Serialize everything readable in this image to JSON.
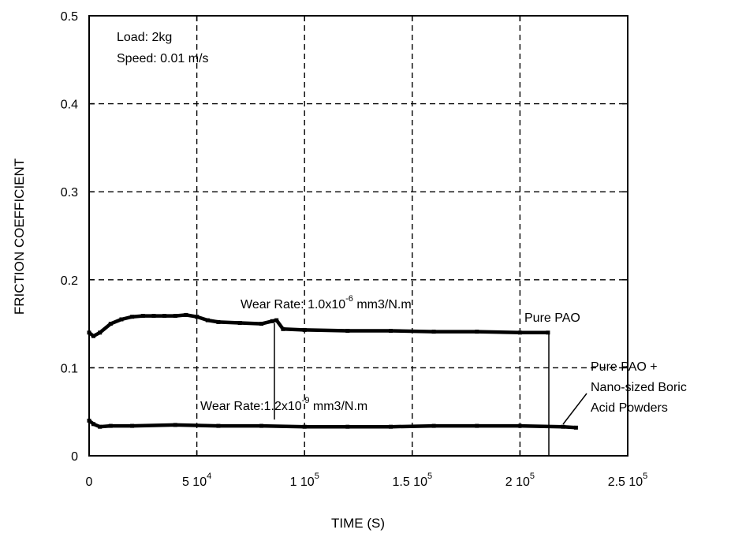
{
  "chart_data": {
    "type": "line",
    "xlabel": "TIME (S)",
    "ylabel": "FRICTION COEFFICIENT",
    "xlim": [
      0,
      250000
    ],
    "ylim": [
      0,
      0.5
    ],
    "grid": true,
    "x_ticks": [
      {
        "value": 0,
        "mantissa": "0",
        "exponent": ""
      },
      {
        "value": 50000,
        "mantissa": "5 10",
        "exponent": "4"
      },
      {
        "value": 100000,
        "mantissa": "1 10",
        "exponent": "5"
      },
      {
        "value": 150000,
        "mantissa": "1.5 10",
        "exponent": "5"
      },
      {
        "value": 200000,
        "mantissa": "2 10",
        "exponent": "5"
      },
      {
        "value": 250000,
        "mantissa": "2.5 10",
        "exponent": "5"
      }
    ],
    "y_ticks": [
      {
        "value": 0,
        "label": "0"
      },
      {
        "value": 0.1,
        "label": "0.1"
      },
      {
        "value": 0.2,
        "label": "0.2"
      },
      {
        "value": 0.3,
        "label": "0.3"
      },
      {
        "value": 0.4,
        "label": "0.4"
      },
      {
        "value": 0.5,
        "label": "0.5"
      }
    ],
    "conditions": [
      "Load: 2kg",
      "Speed: 0.01 m/s"
    ],
    "series": [
      {
        "name": "Pure PAO",
        "x": [
          0,
          2000,
          5000,
          10000,
          15000,
          20000,
          25000,
          30000,
          35000,
          40000,
          45000,
          50000,
          55000,
          60000,
          70000,
          80000,
          85000,
          87000,
          90000,
          100000,
          120000,
          140000,
          160000,
          180000,
          200000,
          213000
        ],
        "y": [
          0.14,
          0.136,
          0.14,
          0.15,
          0.155,
          0.158,
          0.159,
          0.159,
          0.159,
          0.159,
          0.16,
          0.158,
          0.154,
          0.152,
          0.151,
          0.15,
          0.153,
          0.154,
          0.144,
          0.143,
          0.142,
          0.142,
          0.141,
          0.141,
          0.14,
          0.14
        ]
      },
      {
        "name": "Pure PAO + Nano-sized Boric Acid Powders",
        "x": [
          0,
          2000,
          5000,
          10000,
          20000,
          40000,
          60000,
          80000,
          100000,
          120000,
          140000,
          160000,
          180000,
          200000,
          220000,
          226000
        ],
        "y": [
          0.04,
          0.036,
          0.033,
          0.034,
          0.034,
          0.035,
          0.034,
          0.034,
          0.033,
          0.033,
          0.033,
          0.034,
          0.034,
          0.034,
          0.033,
          0.032
        ]
      }
    ],
    "annotations": [
      {
        "id": "pao_wear",
        "prefix": "Wear Rate: 1.0x10",
        "exponent": "-6",
        "suffix": " mm3/N.m"
      },
      {
        "id": "boric_wear",
        "prefix": "Wear Rate:1.2x10",
        "exponent": "-9",
        "suffix": " mm3/N.m"
      },
      {
        "id": "pao_label",
        "text": "Pure PAO"
      },
      {
        "id": "boric_label",
        "lines": [
          "Pure PAO +",
          "Nano-sized Boric",
          "Acid Powders"
        ]
      }
    ]
  }
}
